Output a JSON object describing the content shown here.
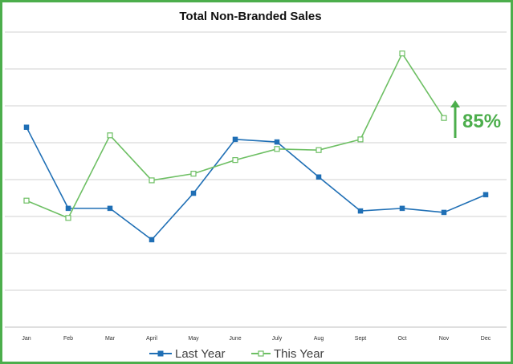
{
  "chart_data": {
    "type": "line",
    "title": "Total Non-Branded Sales",
    "categories": [
      "Jan",
      "Feb",
      "Mar",
      "April",
      "May",
      "June",
      "July",
      "Aug",
      "Sept",
      "Oct",
      "Nov",
      "Dec"
    ],
    "series": [
      {
        "name": "Last Year",
        "color": "#1f6fb5",
        "marker": "filled-square",
        "values": [
          5.42,
          3.22,
          3.22,
          2.37,
          3.63,
          5.09,
          5.02,
          4.07,
          3.15,
          3.22,
          3.11,
          3.59
        ]
      },
      {
        "name": "This Year",
        "color": "#6dbf63",
        "marker": "hollow-square",
        "values": [
          3.43,
          2.96,
          5.2,
          3.98,
          4.16,
          4.53,
          4.83,
          4.8,
          5.09,
          7.42,
          5.67,
          null
        ]
      }
    ],
    "ylim": [
      0,
      8
    ],
    "grid": true,
    "show_y_tick_labels": false,
    "legend_position": "bottom",
    "annotation": {
      "text": "85%",
      "color": "#4cae4c",
      "icon": "up-arrow-icon"
    }
  }
}
